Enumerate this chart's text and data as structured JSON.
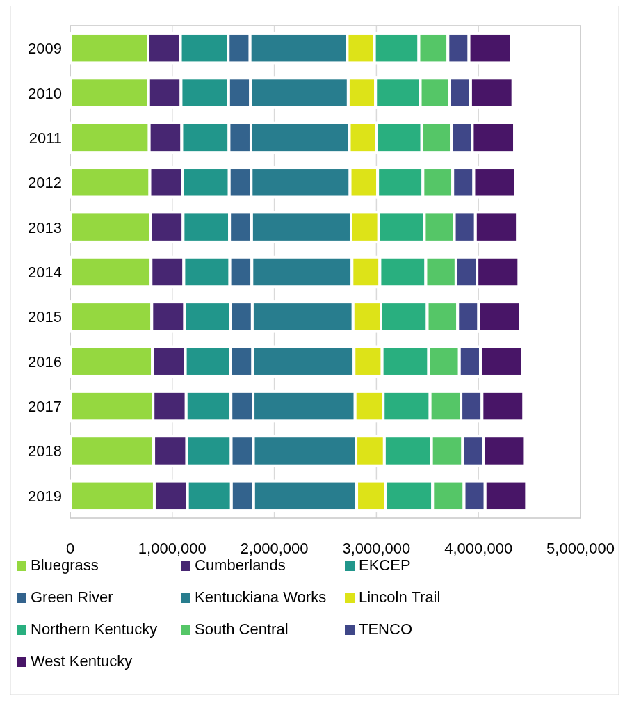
{
  "chart_data": {
    "type": "bar",
    "orientation": "horizontal",
    "stacked": true,
    "grid": "x",
    "legend": "bottom",
    "categories": [
      "2009",
      "2010",
      "2011",
      "2012",
      "2013",
      "2014",
      "2015",
      "2016",
      "2017",
      "2018",
      "2019"
    ],
    "xlim": [
      0,
      5000000
    ],
    "xticks": [
      0,
      {
        "value": 1000000,
        "label": "1,000,000"
      },
      {
        "value": 2000000,
        "label": "2,000,000"
      },
      {
        "value": 3000000,
        "label": "3,000,000"
      },
      {
        "value": 4000000,
        "label": "4,000,000"
      },
      {
        "value": 5000000,
        "label": "5,000,000"
      }
    ],
    "series": [
      {
        "name": "Bluegrass",
        "color": "#95d840",
        "values": [
          763000,
          768000,
          774000,
          780000,
          786000,
          792000,
          799000,
          805000,
          812000,
          818000,
          824000
        ]
      },
      {
        "name": "Cumberlands",
        "color": "#472672",
        "values": [
          317000,
          318000,
          319000,
          319000,
          320000,
          321000,
          322000,
          323000,
          324000,
          324000,
          325000
        ]
      },
      {
        "name": "EKCEP",
        "color": "#21968b",
        "values": [
          468000,
          466000,
          463000,
          459000,
          455000,
          451000,
          447000,
          443000,
          439000,
          435000,
          430000
        ]
      },
      {
        "name": "Green River",
        "color": "#33638d",
        "values": [
          214000,
          214000,
          215000,
          215000,
          216000,
          216000,
          216000,
          217000,
          217000,
          218000,
          218000
        ]
      },
      {
        "name": "Kentuckiana Works",
        "color": "#287d8e",
        "values": [
          952000,
          958000,
          964000,
          969000,
          975000,
          981000,
          987000,
          993000,
          999000,
          1005000,
          1010000
        ]
      },
      {
        "name": "Lincoln Trail",
        "color": "#dde318",
        "values": [
          267000,
          268000,
          269000,
          270000,
          271000,
          273000,
          274000,
          275000,
          276000,
          278000,
          279000
        ]
      },
      {
        "name": "Northern Kentucky",
        "color": "#29af7f",
        "values": [
          435000,
          438000,
          441000,
          444000,
          447000,
          450000,
          453000,
          456000,
          459000,
          462000,
          465000
        ]
      },
      {
        "name": "South Central",
        "color": "#55c667",
        "values": [
          285000,
          287000,
          289000,
          292000,
          294000,
          296000,
          298000,
          301000,
          303000,
          305000,
          308000
        ]
      },
      {
        "name": "TENCO",
        "color": "#3f4788",
        "values": [
          206000,
          206000,
          206000,
          206000,
          206000,
          206000,
          206000,
          206000,
          206000,
          206000,
          206000
        ]
      },
      {
        "name": "West Kentucky",
        "color": "#481567",
        "values": [
          415000,
          414000,
          413000,
          412000,
          411000,
          410000,
          410000,
          409000,
          408000,
          407000,
          406000
        ]
      }
    ]
  }
}
